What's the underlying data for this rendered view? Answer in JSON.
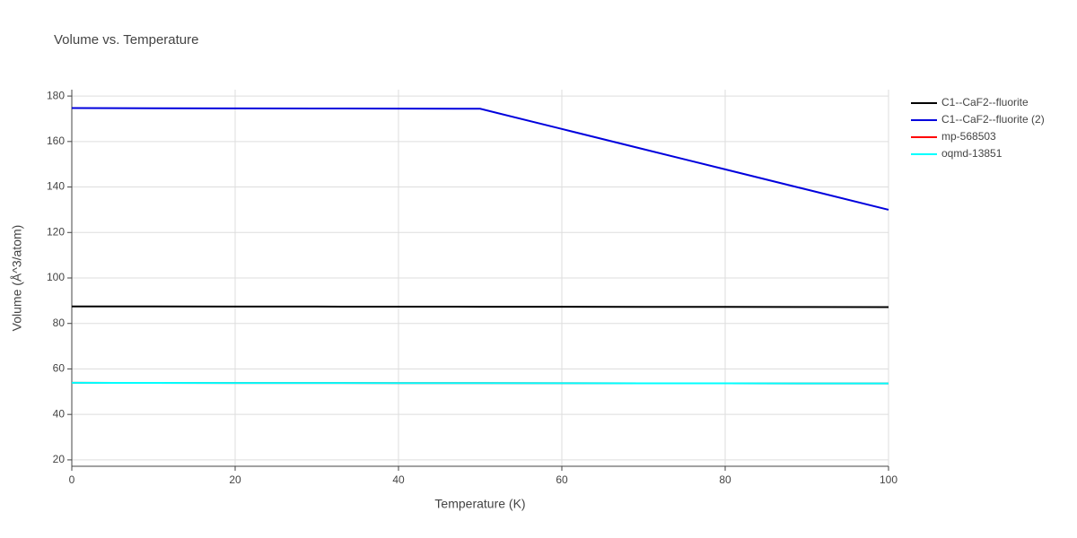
{
  "chart_data": {
    "type": "line",
    "title": "Volume vs. Temperature",
    "x_label": "Temperature (K)",
    "y_label": "Volume (Å^3/atom)",
    "x": [
      0,
      10,
      20,
      30,
      40,
      50,
      60,
      70,
      80,
      90,
      100
    ],
    "series": [
      {
        "name": "C1--CaF2--fluorite",
        "color": "#000000",
        "values": [
          87.5,
          87.47,
          87.44,
          87.41,
          87.38,
          87.35,
          87.32,
          87.29,
          87.26,
          87.23,
          87.2
        ]
      },
      {
        "name": "C1--CaF2--fluorite (2)",
        "color": "#0000dd",
        "values": [
          174.7,
          174.64,
          174.58,
          174.52,
          174.46,
          174.4,
          165.52,
          156.64,
          147.76,
          138.88,
          130
        ]
      },
      {
        "name": "mp-568503",
        "color": "#ff0000",
        "values": [
          53.9,
          53.87,
          53.84,
          53.81,
          53.78,
          53.75,
          53.72,
          53.69,
          53.66,
          53.63,
          53.6
        ]
      },
      {
        "name": "oqmd-13851",
        "color": "#00ffff",
        "values": [
          53.9,
          53.87,
          53.84,
          53.81,
          53.78,
          53.75,
          53.72,
          53.69,
          53.66,
          53.63,
          53.6
        ]
      }
    ],
    "xlim": [
      0,
      100
    ],
    "xticks": [
      0,
      20,
      40,
      60,
      80,
      100
    ],
    "ylim": [
      17.2,
      182.8
    ],
    "yticks": [
      20,
      40,
      60,
      80,
      100,
      120,
      140,
      160,
      180
    ],
    "grid": true,
    "legend": "right"
  }
}
